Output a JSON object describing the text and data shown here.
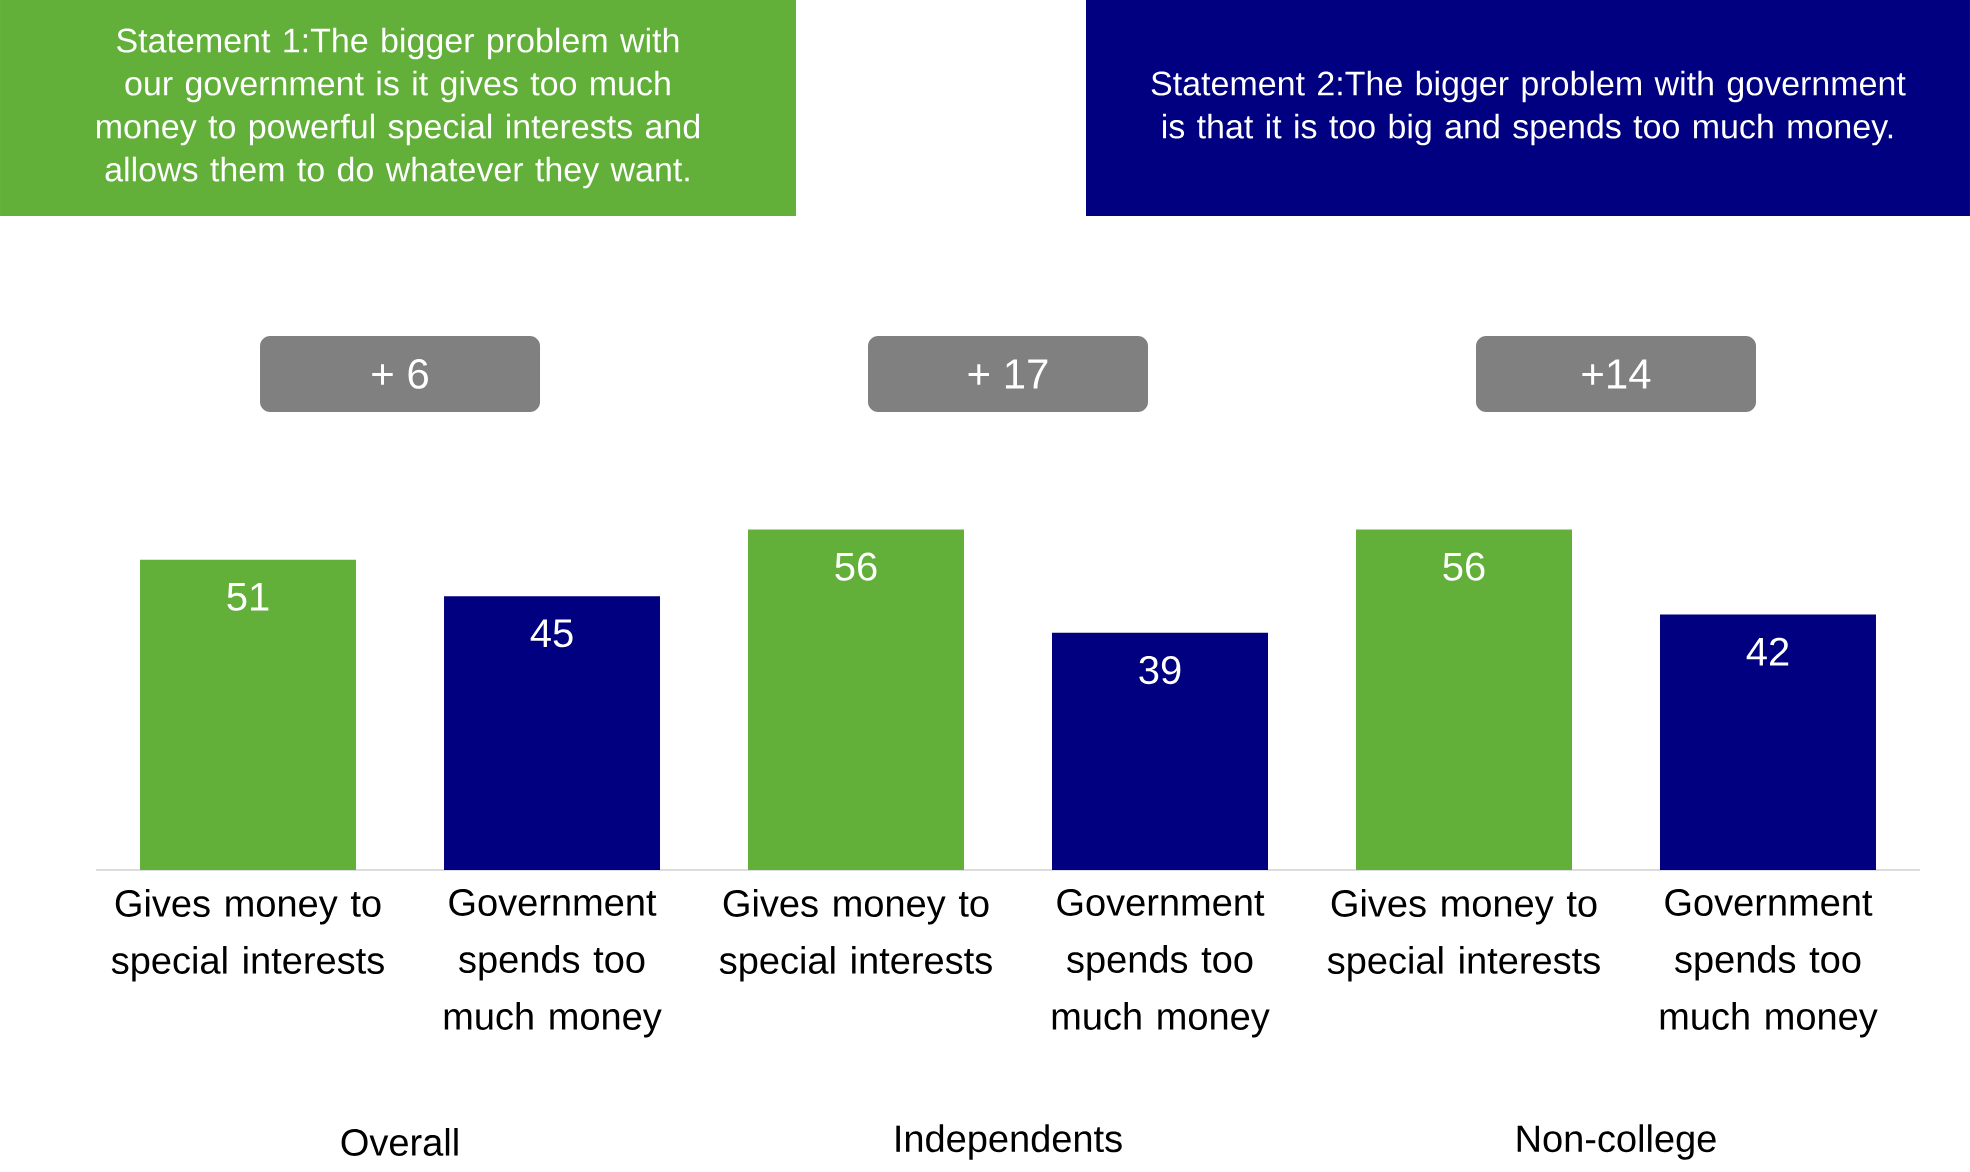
{
  "chart_data": {
    "type": "bar",
    "categories": [
      "Gives money to special interests",
      "Government spends too much money",
      "Gives money to special interests",
      "Government spends too much money",
      "Gives money to special interests",
      "Government spends too much money"
    ],
    "values": [
      51,
      45,
      56,
      39,
      56,
      42
    ],
    "colors": [
      "#62b03a",
      "#000080",
      "#62b03a",
      "#000080",
      "#62b03a",
      "#000080"
    ],
    "tick_labels": "x",
    "data_labels": true,
    "annotations": [
      "Statement 1:The bigger problem with our government is it gives too much money to powerful special interests and allows them to do whatever they want.",
      "Statement 2:The bigger problem with government is that it is too big and spends too much money.",
      "+ 6",
      "+ 17",
      "+14",
      "Overall",
      "Independents",
      "Non-college"
    ]
  }
}
